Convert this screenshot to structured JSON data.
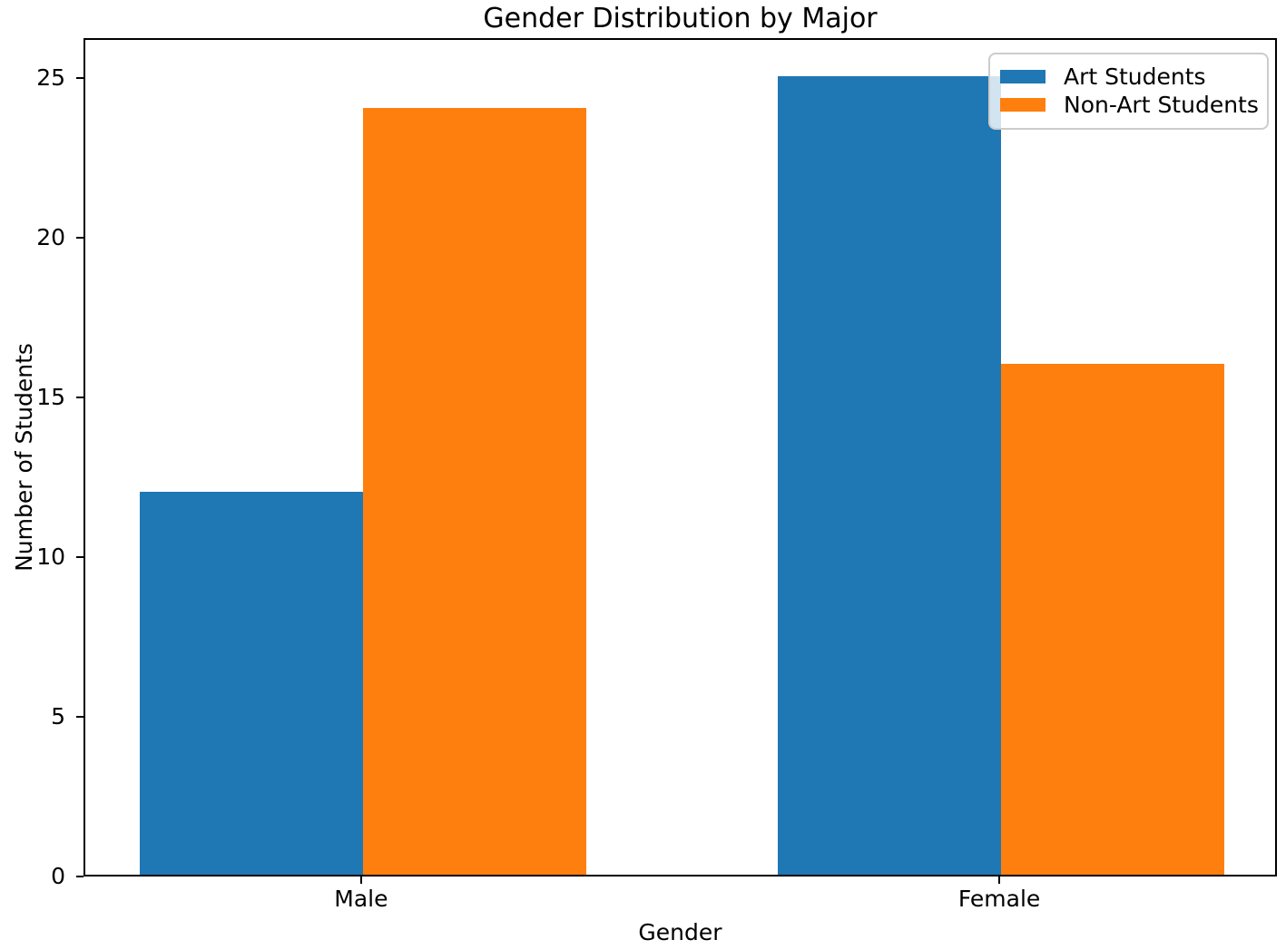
{
  "chart": {
    "title": "Gender Distribution by Major",
    "xlabel": "Gender",
    "ylabel": "Number of Students"
  },
  "chart_data": {
    "type": "bar",
    "title": "Gender Distribution by Major",
    "xlabel": "Gender",
    "ylabel": "Number of Students",
    "categories": [
      "Male",
      "Female"
    ],
    "series": [
      {
        "name": "Art Students",
        "color": "#1f77b4",
        "values": [
          12,
          25
        ]
      },
      {
        "name": "Non-Art Students",
        "color": "#ff7f0e",
        "values": [
          24,
          16
        ]
      }
    ],
    "bar_width": 0.35,
    "yticks": [
      0,
      5,
      10,
      15,
      20,
      25
    ],
    "ylim": [
      0,
      26.25
    ],
    "xlim": [
      -0.435,
      1.435
    ],
    "grid": false,
    "legend": {
      "position": "upper right",
      "border_color": "#cccccc",
      "background": "rgba(255,255,255,0.8)"
    },
    "axis_color": "#000000"
  }
}
